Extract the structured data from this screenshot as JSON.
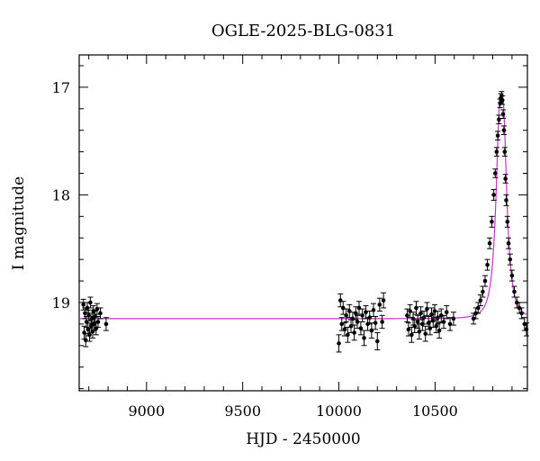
{
  "chart_data": {
    "type": "scatter",
    "title": "OGLE-2025-BLG-0831",
    "xlabel": "HJD - 2450000",
    "ylabel": "I magnitude",
    "xlim": [
      8650,
      10980
    ],
    "ylim": [
      19.82,
      16.7
    ],
    "y_inverted": true,
    "x_ticks": [
      9000,
      9500,
      10000,
      10500
    ],
    "y_ticks": [
      17,
      18,
      19
    ],
    "grid": false,
    "model_color": "#cc33cc",
    "point_color": "#000000",
    "model": {
      "baseline_mag": 19.15,
      "peak_time": 10845,
      "peak_mag": 17.08,
      "t_eff_days": 18
    },
    "series": [
      {
        "values": [
          [
            8672,
            19.02,
            0.05
          ],
          [
            8676,
            19.28,
            0.06
          ],
          [
            8680,
            19.1,
            0.05
          ],
          [
            8684,
            19.35,
            0.06
          ],
          [
            8688,
            19.18,
            0.05
          ],
          [
            8692,
            19.05,
            0.05
          ],
          [
            8696,
            19.25,
            0.06
          ],
          [
            8700,
            19.12,
            0.05
          ],
          [
            8704,
            19.3,
            0.06
          ],
          [
            8708,
            19.0,
            0.05
          ],
          [
            8712,
            19.22,
            0.06
          ],
          [
            8716,
            19.15,
            0.05
          ],
          [
            8720,
            19.27,
            0.06
          ],
          [
            8724,
            19.08,
            0.05
          ],
          [
            8728,
            19.2,
            0.06
          ],
          [
            8733,
            19.13,
            0.05
          ],
          [
            8738,
            19.24,
            0.06
          ],
          [
            8743,
            19.06,
            0.05
          ],
          [
            8748,
            19.18,
            0.05
          ],
          [
            8760,
            19.1,
            0.05
          ],
          [
            8790,
            19.2,
            0.06
          ],
          [
            10000,
            19.38,
            0.08
          ],
          [
            10008,
            18.98,
            0.06
          ],
          [
            10015,
            19.2,
            0.06
          ],
          [
            10022,
            19.05,
            0.06
          ],
          [
            10030,
            19.25,
            0.06
          ],
          [
            10038,
            19.12,
            0.06
          ],
          [
            10046,
            19.3,
            0.07
          ],
          [
            10055,
            19.08,
            0.06
          ],
          [
            10063,
            19.22,
            0.06
          ],
          [
            10072,
            19.15,
            0.06
          ],
          [
            10080,
            19.28,
            0.07
          ],
          [
            10088,
            19.1,
            0.06
          ],
          [
            10096,
            19.18,
            0.06
          ],
          [
            10105,
            19.05,
            0.06
          ],
          [
            10114,
            19.24,
            0.06
          ],
          [
            10122,
            19.12,
            0.06
          ],
          [
            10131,
            19.33,
            0.07
          ],
          [
            10140,
            19.09,
            0.06
          ],
          [
            10150,
            19.2,
            0.06
          ],
          [
            10160,
            19.14,
            0.06
          ],
          [
            10170,
            19.26,
            0.07
          ],
          [
            10180,
            19.07,
            0.06
          ],
          [
            10190,
            19.19,
            0.06
          ],
          [
            10200,
            19.36,
            0.08
          ],
          [
            10212,
            19.02,
            0.06
          ],
          [
            10225,
            19.18,
            0.06
          ],
          [
            10232,
            18.98,
            0.07
          ],
          [
            10355,
            19.12,
            0.06
          ],
          [
            10362,
            19.25,
            0.06
          ],
          [
            10370,
            19.08,
            0.06
          ],
          [
            10378,
            19.3,
            0.07
          ],
          [
            10386,
            19.15,
            0.06
          ],
          [
            10394,
            19.22,
            0.06
          ],
          [
            10402,
            19.05,
            0.06
          ],
          [
            10410,
            19.18,
            0.06
          ],
          [
            10418,
            19.27,
            0.07
          ],
          [
            10426,
            19.1,
            0.06
          ],
          [
            10434,
            19.2,
            0.06
          ],
          [
            10442,
            19.14,
            0.06
          ],
          [
            10450,
            19.29,
            0.07
          ],
          [
            10458,
            19.06,
            0.06
          ],
          [
            10466,
            19.19,
            0.06
          ],
          [
            10474,
            19.24,
            0.06
          ],
          [
            10482,
            19.11,
            0.06
          ],
          [
            10490,
            19.17,
            0.06
          ],
          [
            10498,
            19.08,
            0.06
          ],
          [
            10506,
            19.22,
            0.06
          ],
          [
            10514,
            19.14,
            0.06
          ],
          [
            10522,
            19.26,
            0.07
          ],
          [
            10532,
            19.12,
            0.06
          ],
          [
            10545,
            19.18,
            0.06
          ],
          [
            10560,
            19.09,
            0.06
          ],
          [
            10578,
            19.2,
            0.06
          ],
          [
            10596,
            19.15,
            0.06
          ],
          [
            10700,
            19.15,
            0.05
          ],
          [
            10712,
            19.1,
            0.05
          ],
          [
            10724,
            19.05,
            0.05
          ],
          [
            10736,
            18.98,
            0.05
          ],
          [
            10748,
            18.9,
            0.05
          ],
          [
            10760,
            18.8,
            0.05
          ],
          [
            10772,
            18.65,
            0.05
          ],
          [
            10784,
            18.45,
            0.05
          ],
          [
            10795,
            18.25,
            0.05
          ],
          [
            10805,
            18.0,
            0.05
          ],
          [
            10813,
            17.8,
            0.04
          ],
          [
            10820,
            17.6,
            0.04
          ],
          [
            10826,
            17.45,
            0.04
          ],
          [
            10832,
            17.3,
            0.04
          ],
          [
            10838,
            17.15,
            0.04
          ],
          [
            10842,
            17.1,
            0.04
          ],
          [
            10846,
            17.08,
            0.04
          ],
          [
            10850,
            17.12,
            0.04
          ],
          [
            10854,
            17.25,
            0.04
          ],
          [
            10858,
            17.4,
            0.04
          ],
          [
            10862,
            17.6,
            0.04
          ],
          [
            10866,
            17.85,
            0.04
          ],
          [
            10870,
            18.05,
            0.05
          ],
          [
            10876,
            18.25,
            0.05
          ],
          [
            10882,
            18.45,
            0.05
          ],
          [
            10890,
            18.6,
            0.05
          ],
          [
            10900,
            18.75,
            0.05
          ],
          [
            10912,
            18.9,
            0.05
          ],
          [
            10925,
            19.0,
            0.05
          ],
          [
            10938,
            19.05,
            0.05
          ],
          [
            10950,
            19.1,
            0.05
          ],
          [
            10965,
            19.2,
            0.06
          ],
          [
            10975,
            19.25,
            0.06
          ]
        ]
      }
    ]
  }
}
